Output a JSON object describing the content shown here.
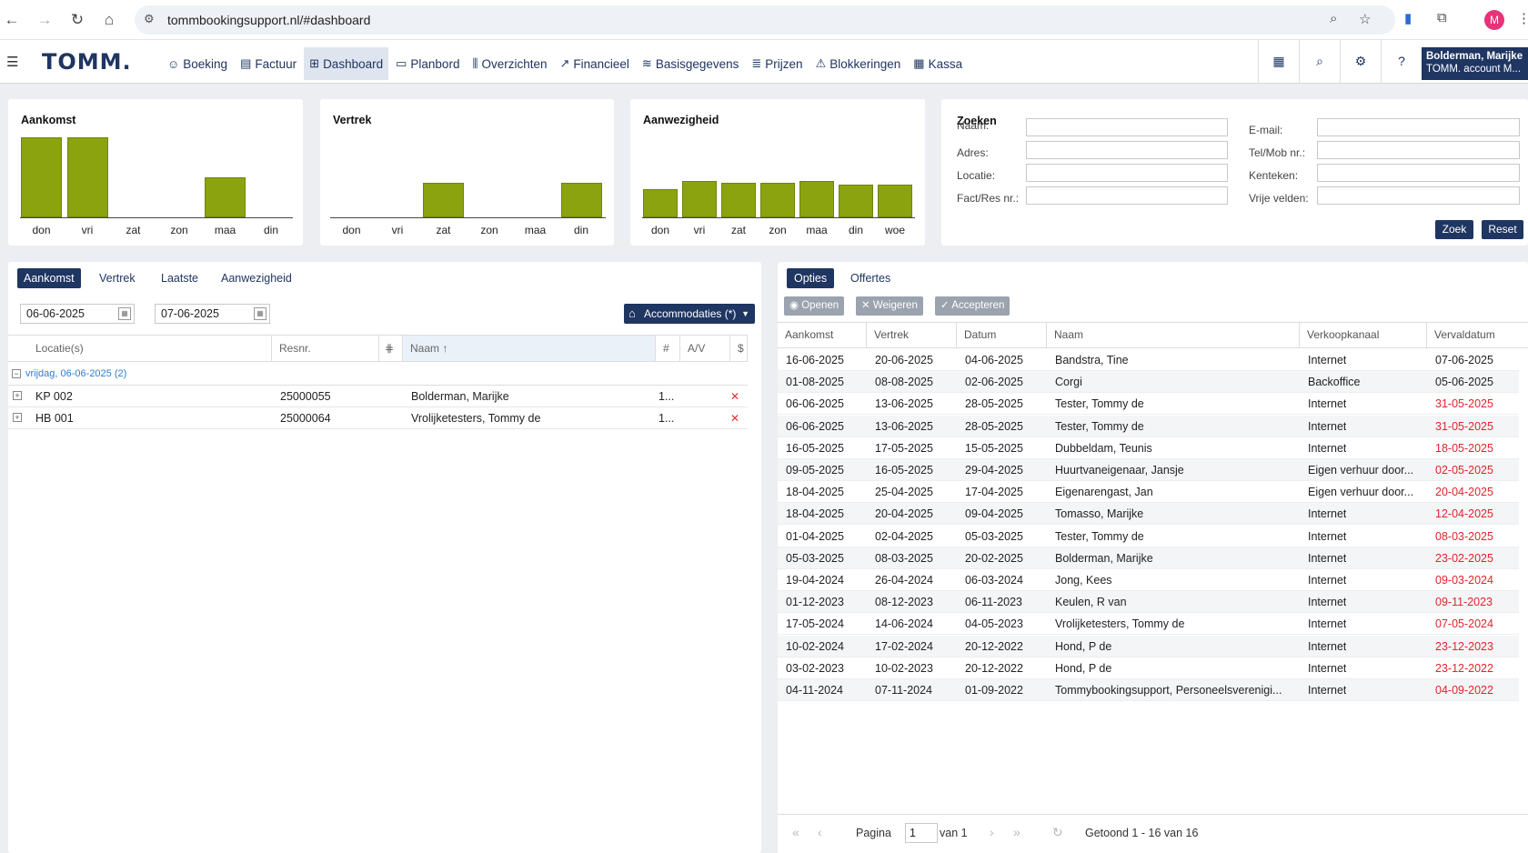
{
  "browser": {
    "url": "tommbookingsupport.nl/#dashboard",
    "profile_initial": "M"
  },
  "app": {
    "logo": "TOMM.",
    "menu": [
      {
        "label": "Boeking",
        "icon": "smiley-icon",
        "glyph": "☺"
      },
      {
        "label": "Factuur",
        "icon": "invoice-icon",
        "glyph": "▤"
      },
      {
        "label": "Dashboard",
        "icon": "dashboard-icon",
        "glyph": "⊞",
        "active": true
      },
      {
        "label": "Planbord",
        "icon": "calendar-icon",
        "glyph": "▭"
      },
      {
        "label": "Overzichten",
        "icon": "bar-chart-icon",
        "glyph": "⫼"
      },
      {
        "label": "Financieel",
        "icon": "line-chart-icon",
        "glyph": "↗"
      },
      {
        "label": "Basisgegevens",
        "icon": "database-icon",
        "glyph": "≋"
      },
      {
        "label": "Prijzen",
        "icon": "price-stack-icon",
        "glyph": "≣"
      },
      {
        "label": "Blokkeringen",
        "icon": "warning-icon",
        "glyph": "⚠"
      },
      {
        "label": "Kassa",
        "icon": "cash-register-icon",
        "glyph": "▦"
      }
    ],
    "user": {
      "name": "Bolderman, Marijke",
      "account": "TOMM. account M..."
    }
  },
  "cards": {
    "aankomst": {
      "title": "Aankomst"
    },
    "vertrek": {
      "title": "Vertrek"
    },
    "aanwezigheid": {
      "title": "Aanwezigheid"
    }
  },
  "chart_data": [
    {
      "type": "bar",
      "title": "Aankomst",
      "categories": [
        "don",
        "vri",
        "zat",
        "zon",
        "maa",
        "din"
      ],
      "values": [
        2,
        2,
        0,
        0,
        1,
        0
      ]
    },
    {
      "type": "bar",
      "title": "Vertrek",
      "categories": [
        "don",
        "vri",
        "zat",
        "zon",
        "maa",
        "din"
      ],
      "values": [
        0,
        0,
        1,
        0,
        0,
        1
      ]
    },
    {
      "type": "bar",
      "title": "Aanwezigheid",
      "categories": [
        "don",
        "vri",
        "zat",
        "zon",
        "maa",
        "din",
        "woe"
      ],
      "values": [
        7,
        9,
        8.5,
        8.5,
        9,
        8,
        8
      ]
    }
  ],
  "search": {
    "title": "Zoeken",
    "fields_left": [
      "Naam:",
      "Adres:",
      "Locatie:",
      "Fact/Res nr.:"
    ],
    "fields_right": [
      "E-mail:",
      "Tel/Mob nr.:",
      "Kenteken:",
      "Vrije velden:"
    ],
    "search_button": "Zoek",
    "reset_button": "Reset"
  },
  "left_panel": {
    "tabs": [
      "Aankomst",
      "Vertrek",
      "Laatste",
      "Aanwezigheid"
    ],
    "active_tab": "Aankomst",
    "date_from": "06-06-2025",
    "date_to": "07-06-2025",
    "accommodation_filter": "Accommodaties (*)",
    "columns": [
      "Locatie(s)",
      "Resnr.",
      "",
      "Naam",
      "#",
      "A/V",
      "$"
    ],
    "sorted_column": "Naam",
    "group_label": "vrijdag, 06-06-2025 (2)",
    "rows": [
      {
        "locatie": "KP 002",
        "resnr": "25000055",
        "naam": "Bolderman, Marijke",
        "count": "1..."
      },
      {
        "locatie": "HB 001",
        "resnr": "25000064",
        "naam": "Vrolijketesters, Tommy de",
        "count": "1..."
      }
    ]
  },
  "right_panel": {
    "tabs": [
      "Opties",
      "Offertes"
    ],
    "active_tab": "Opties",
    "toolbar": {
      "open": "Openen",
      "reject": "Weigeren",
      "accept": "Accepteren"
    },
    "columns": [
      "Aankomst",
      "Vertrek",
      "Datum",
      "Naam",
      "Verkoopkanaal",
      "Vervaldatum"
    ],
    "rows": [
      {
        "aankomst": "16-06-2025",
        "vertrek": "20-06-2025",
        "datum": "04-06-2025",
        "naam": "Bandstra, Tine",
        "kanaal": "Internet",
        "verval": "07-06-2025",
        "overdue": false
      },
      {
        "aankomst": "01-08-2025",
        "vertrek": "08-08-2025",
        "datum": "02-06-2025",
        "naam": "Corgi",
        "kanaal": "Backoffice",
        "verval": "05-06-2025",
        "overdue": false
      },
      {
        "aankomst": "06-06-2025",
        "vertrek": "13-06-2025",
        "datum": "28-05-2025",
        "naam": "Tester, Tommy de",
        "kanaal": "Internet",
        "verval": "31-05-2025",
        "overdue": true
      },
      {
        "aankomst": "06-06-2025",
        "vertrek": "13-06-2025",
        "datum": "28-05-2025",
        "naam": "Tester, Tommy de",
        "kanaal": "Internet",
        "verval": "31-05-2025",
        "overdue": true
      },
      {
        "aankomst": "16-05-2025",
        "vertrek": "17-05-2025",
        "datum": "15-05-2025",
        "naam": "Dubbeldam, Teunis",
        "kanaal": "Internet",
        "verval": "18-05-2025",
        "overdue": true
      },
      {
        "aankomst": "09-05-2025",
        "vertrek": "16-05-2025",
        "datum": "29-04-2025",
        "naam": "Huurtvaneigenaar, Jansje",
        "kanaal": "Eigen verhuur door...",
        "verval": "02-05-2025",
        "overdue": true
      },
      {
        "aankomst": "18-04-2025",
        "vertrek": "25-04-2025",
        "datum": "17-04-2025",
        "naam": "Eigenarengast, Jan",
        "kanaal": "Eigen verhuur door...",
        "verval": "20-04-2025",
        "overdue": true
      },
      {
        "aankomst": "18-04-2025",
        "vertrek": "20-04-2025",
        "datum": "09-04-2025",
        "naam": "Tomasso, Marijke",
        "kanaal": "Internet",
        "verval": "12-04-2025",
        "overdue": true
      },
      {
        "aankomst": "01-04-2025",
        "vertrek": "02-04-2025",
        "datum": "05-03-2025",
        "naam": "Tester, Tommy de",
        "kanaal": "Internet",
        "verval": "08-03-2025",
        "overdue": true
      },
      {
        "aankomst": "05-03-2025",
        "vertrek": "08-03-2025",
        "datum": "20-02-2025",
        "naam": "Bolderman, Marijke",
        "kanaal": "Internet",
        "verval": "23-02-2025",
        "overdue": true
      },
      {
        "aankomst": "19-04-2024",
        "vertrek": "26-04-2024",
        "datum": "06-03-2024",
        "naam": "Jong, Kees",
        "kanaal": "Internet",
        "verval": "09-03-2024",
        "overdue": true
      },
      {
        "aankomst": "01-12-2023",
        "vertrek": "08-12-2023",
        "datum": "06-11-2023",
        "naam": "Keulen, R van",
        "kanaal": "Internet",
        "verval": "09-11-2023",
        "overdue": true
      },
      {
        "aankomst": "17-05-2024",
        "vertrek": "14-06-2024",
        "datum": "04-05-2023",
        "naam": "Vrolijketesters, Tommy de",
        "kanaal": "Internet",
        "verval": "07-05-2024",
        "overdue": true
      },
      {
        "aankomst": "10-02-2024",
        "vertrek": "17-02-2024",
        "datum": "20-12-2022",
        "naam": "Hond, P de",
        "kanaal": "Internet",
        "verval": "23-12-2023",
        "overdue": true
      },
      {
        "aankomst": "03-02-2023",
        "vertrek": "10-02-2023",
        "datum": "20-12-2022",
        "naam": "Hond, P de",
        "kanaal": "Internet",
        "verval": "23-12-2022",
        "overdue": true
      },
      {
        "aankomst": "04-11-2024",
        "vertrek": "07-11-2024",
        "datum": "01-09-2022",
        "naam": "Tommybookingsupport, Personeelsverenigi...",
        "kanaal": "Internet",
        "verval": "04-09-2022",
        "overdue": true
      }
    ],
    "pager": {
      "page_label": "Pagina",
      "page": "1",
      "of_label": "van 1",
      "summary": "Getoond 1 - 16 van 16"
    }
  },
  "colors": {
    "brand": "#1f3562",
    "bar": "#8aa30f",
    "overdue": "#e0242c"
  }
}
